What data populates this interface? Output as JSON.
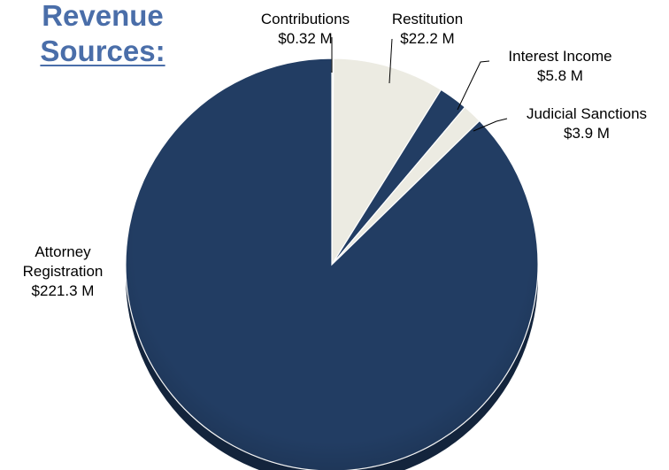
{
  "title": {
    "line1": "Revenue",
    "line2": "Sources:"
  },
  "colors": {
    "dark": "#223d63",
    "light": "#ecebe2",
    "title": "#4a6ea9"
  },
  "chart_data": {
    "type": "pie",
    "slices": [
      {
        "label_lines": [
          "Contributions",
          "$0.32 M"
        ],
        "value": 0.32,
        "color": "light"
      },
      {
        "label_lines": [
          "Restitution",
          "$22.2 M"
        ],
        "value": 22.2,
        "color": "light"
      },
      {
        "label_lines": [
          "Interest Income",
          "$5.8 M"
        ],
        "value": 5.8,
        "color": "dark"
      },
      {
        "label_lines": [
          "Judicial Sanctions",
          "$3.9 M"
        ],
        "value": 3.9,
        "color": "light"
      },
      {
        "label_lines": [
          "Attorney",
          "Registration",
          "$221.3 M"
        ],
        "value": 221.3,
        "color": "dark"
      }
    ],
    "start_angle": "12 o'clock",
    "direction": "clockwise",
    "legend": "none",
    "data_labels": "outside with leader lines"
  }
}
